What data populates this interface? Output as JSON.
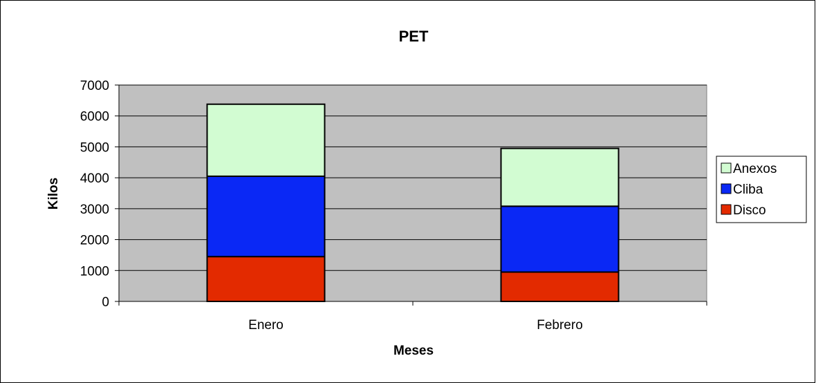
{
  "chart_data": {
    "type": "bar",
    "stacked": true,
    "title": "PET",
    "xlabel": "Meses",
    "ylabel": "Kilos",
    "categories": [
      "Enero",
      "Febrero"
    ],
    "ylim": [
      0,
      7000
    ],
    "yticks": [
      0,
      1000,
      2000,
      3000,
      4000,
      5000,
      6000,
      7000
    ],
    "grid": true,
    "legend_position": "right",
    "series": [
      {
        "name": "Disco",
        "values": [
          1450,
          950
        ],
        "color": "#e32a00"
      },
      {
        "name": "Cliba",
        "values": [
          2600,
          2130
        ],
        "color": "#0a28f5"
      },
      {
        "name": "Anexos",
        "values": [
          2330,
          1870
        ],
        "color": "#d2fcd2"
      }
    ],
    "plot_background": "#c0c0c0"
  }
}
